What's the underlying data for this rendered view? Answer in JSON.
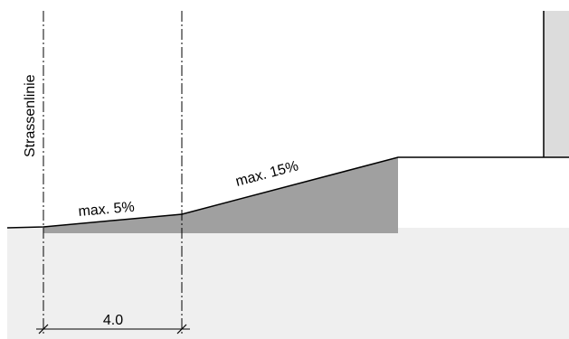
{
  "labels": {
    "street_line": "Strassenlinie",
    "slope_flat": "max. 5%",
    "slope_steep": "max. 15%",
    "dimension": "4.0"
  },
  "colors": {
    "ground_fill": "#efefef",
    "ramp_fill": "#a0a0a0",
    "wall_fill": "#dcdcdc",
    "line": "#000000",
    "background": "#ffffff"
  }
}
